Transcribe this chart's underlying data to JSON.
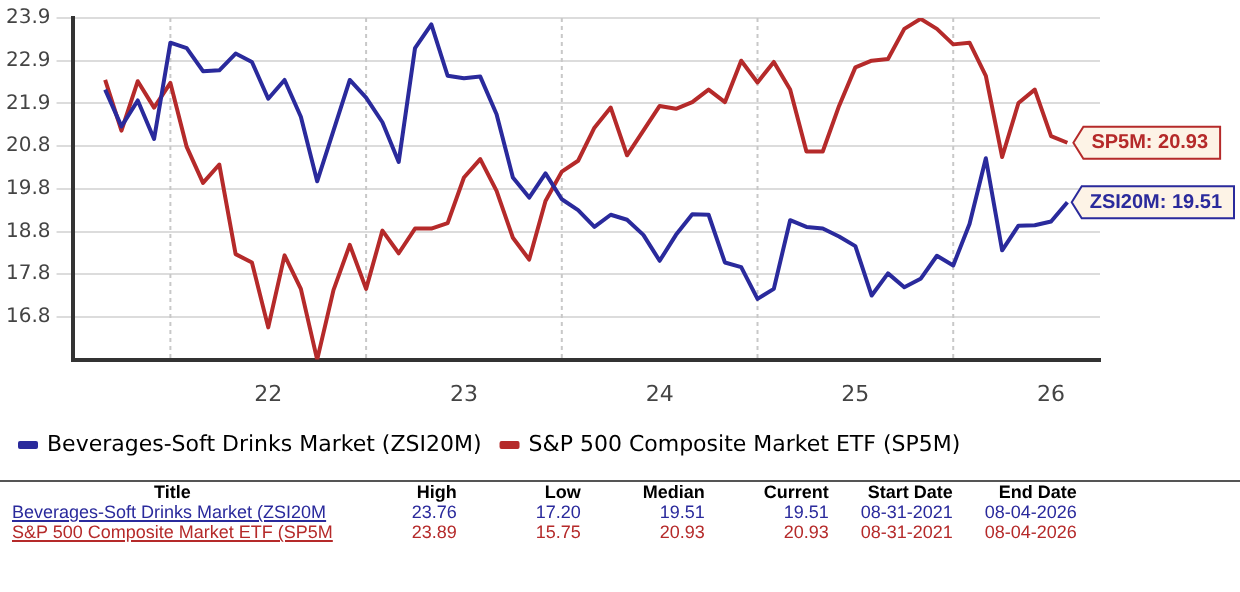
{
  "chart_data": {
    "type": "line",
    "categories": [
      null,
      null,
      null,
      null,
      null,
      null,
      null,
      null,
      null,
      null,
      "22",
      null,
      null,
      null,
      null,
      null,
      null,
      null,
      null,
      null,
      null,
      null,
      "23",
      null,
      null,
      null,
      null,
      null,
      null,
      null,
      null,
      null,
      null,
      null,
      "24",
      null,
      null,
      null,
      null,
      null,
      null,
      null,
      null,
      null,
      null,
      null,
      "25",
      null,
      null,
      null,
      null,
      null,
      null,
      null,
      null,
      null,
      null,
      null,
      "26",
      null
    ],
    "series": [
      {
        "name": "Beverages-Soft Drinks Market (ZSI20M)",
        "color": "#2a2a9c",
        "values": [
          22.2,
          21.32,
          21.94,
          21.02,
          23.32,
          23.19,
          22.64,
          22.66,
          23.06,
          22.86,
          21.98,
          22.43,
          21.55,
          20.01,
          21.22,
          22.43,
          22.01,
          21.42,
          20.47,
          23.19,
          23.76,
          22.53,
          22.47,
          22.51,
          21.61,
          20.1,
          19.62,
          20.2,
          19.58,
          19.32,
          18.92,
          19.21,
          19.09,
          18.73,
          18.11,
          18.73,
          19.22,
          19.21,
          18.07,
          17.96,
          17.2,
          17.44,
          19.08,
          18.92,
          18.88,
          18.69,
          18.46,
          17.28,
          17.81,
          17.48,
          17.68,
          18.23,
          18.0,
          18.99,
          20.56,
          18.36,
          18.95,
          18.96,
          19.05,
          19.51
        ]
      },
      {
        "name": "S&P 500 Composite Market ETF (SP5M)",
        "color": "#b52a2a",
        "values": [
          22.43,
          21.22,
          22.4,
          21.77,
          22.36,
          20.83,
          19.97,
          20.41,
          18.27,
          18.07,
          16.52,
          18.24,
          17.44,
          15.75,
          17.41,
          18.49,
          17.44,
          18.83,
          18.29,
          18.88,
          18.88,
          19.01,
          20.1,
          20.54,
          19.78,
          18.66,
          18.14,
          19.54,
          20.24,
          20.5,
          21.29,
          21.77,
          20.63,
          21.22,
          21.81,
          21.74,
          21.9,
          22.2,
          21.9,
          22.89,
          22.37,
          22.86,
          22.2,
          20.72,
          20.72,
          21.81,
          22.73,
          22.89,
          22.93,
          23.65,
          23.89,
          23.65,
          23.28,
          23.32,
          22.53,
          20.59,
          21.88,
          22.2,
          21.09,
          20.93
        ]
      }
    ],
    "ylim": [
      15.75,
      23.91
    ],
    "yticks": [
      {
        "value": 16.77,
        "label": "16.8"
      },
      {
        "value": 17.79,
        "label": "17.8"
      },
      {
        "value": 18.81,
        "label": "18.8"
      },
      {
        "value": 19.83,
        "label": "19.8"
      },
      {
        "value": 20.85,
        "label": "20.8"
      },
      {
        "value": 21.87,
        "label": "21.9"
      },
      {
        "value": 22.89,
        "label": "22.9"
      },
      {
        "value": 23.91,
        "label": "23.9"
      }
    ],
    "grid": true,
    "legend": "bottom",
    "marker": "none",
    "annotations": [
      "ZSI20M: 19.51",
      "SP5M: 20.93",
      "Title",
      "High",
      "Low",
      "Median",
      "Current",
      "Start Date",
      "End Date",
      "Beverages-Soft Drinks Market (ZSI20M",
      "23.76",
      "17.20",
      "19.51",
      "19.51",
      "08-31-2021",
      "08-04-2026",
      "S&P 500 Composite Market ETF (SP5M",
      "23.89",
      "15.75",
      "20.93",
      "20.93",
      "08-31-2021",
      "08-04-2026"
    ]
  }
}
